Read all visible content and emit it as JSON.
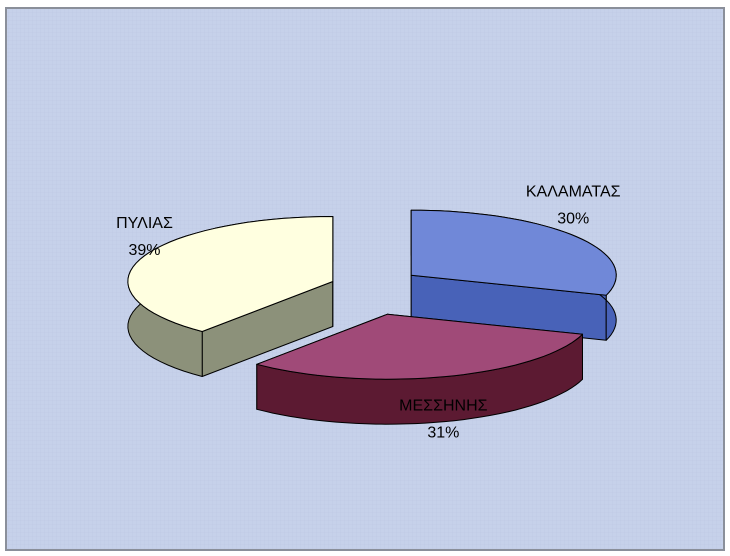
{
  "chart_data": {
    "type": "pie",
    "categories": [
      "ΚΑΛΑΜΑΤΑΣ",
      "ΜΕΣΣΗΝΗΣ",
      "ΠΥΛΙΑΣ"
    ],
    "values": [
      30,
      31,
      39
    ],
    "value_labels": [
      "30%",
      "31%",
      "39%"
    ],
    "colors": [
      "#7088d8",
      "#a04a78",
      "#ffffe0"
    ],
    "side_colors": [
      "#4862b8",
      "#5c1a32",
      "#8c917a"
    ]
  }
}
